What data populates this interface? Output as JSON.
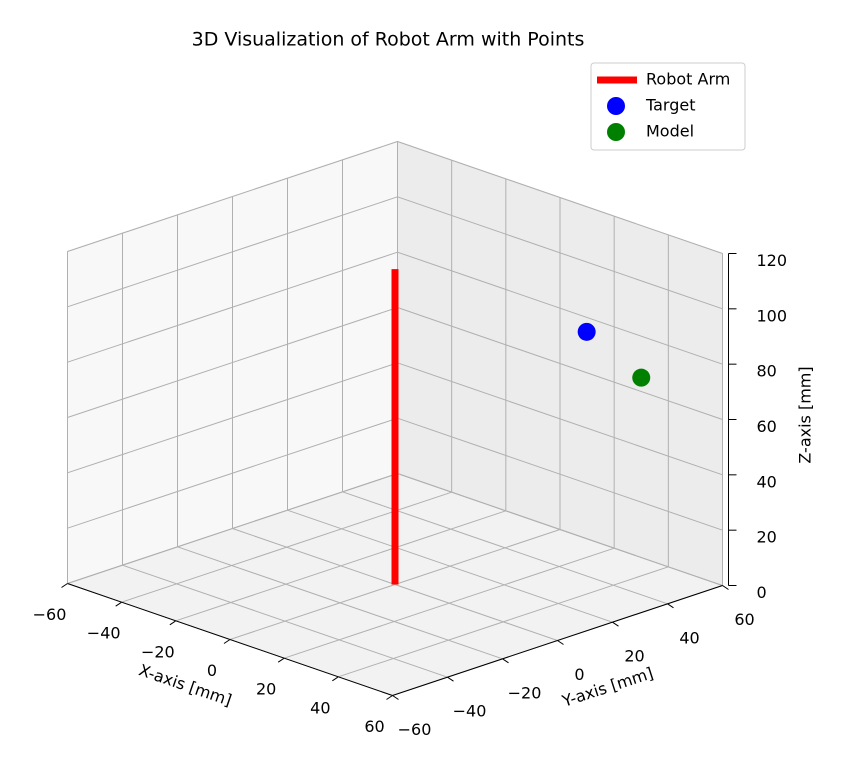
{
  "chart_data": {
    "type": "scatter3d",
    "title": "3D Visualization of Robot Arm with Points",
    "xlabel": "X-axis [mm]",
    "ylabel": "Y-axis [mm]",
    "zlabel": "Z-axis [mm]",
    "xlim": [
      -60,
      60
    ],
    "ylim": [
      -60,
      60
    ],
    "zlim": [
      0,
      120
    ],
    "xticks": [
      {
        "value": -60,
        "label": "−60"
      },
      {
        "value": -40,
        "label": "−40"
      },
      {
        "value": -20,
        "label": "−20"
      },
      0,
      20,
      40,
      60
    ],
    "yticks": [
      {
        "value": -60,
        "label": "−60"
      },
      {
        "value": -40,
        "label": "−40"
      },
      {
        "value": -20,
        "label": "−20"
      },
      0,
      20,
      40,
      60
    ],
    "zticks": [
      0,
      20,
      40,
      60,
      80,
      100,
      120
    ],
    "grid": true,
    "legend": "upper right",
    "series": [
      {
        "name": "Robot Arm",
        "type": "line",
        "color": "#ff0000",
        "x": [
          0,
          0
        ],
        "y": [
          0,
          0
        ],
        "z": [
          0,
          114
        ]
      },
      {
        "name": "Target",
        "type": "scatter",
        "color": "#0000ff",
        "x": [
          20
        ],
        "y": [
          50
        ],
        "z": [
          81.5
        ]
      },
      {
        "name": "Model",
        "type": "scatter",
        "color": "#008000",
        "x": [
          30
        ],
        "y": [
          60
        ],
        "z": [
          65
        ]
      }
    ]
  }
}
